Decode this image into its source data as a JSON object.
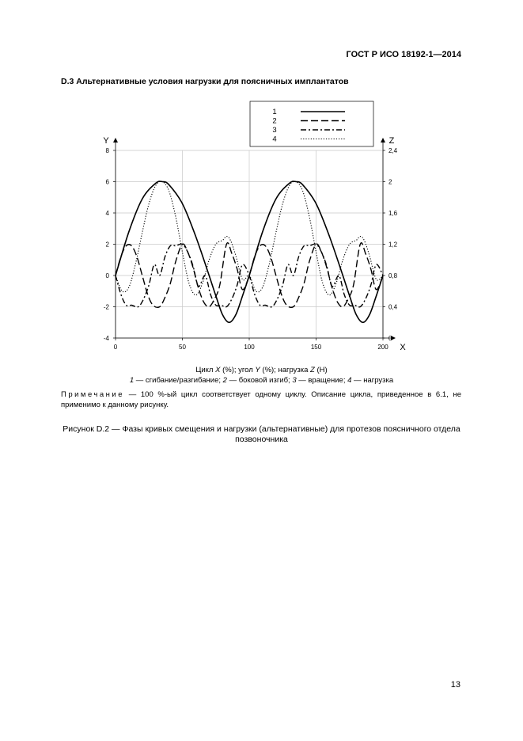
{
  "header": {
    "standard_id": "ГОСТ Р ИСО 18192-1—2014"
  },
  "section": {
    "title": "D.3 Альтернативные условия нагрузки для поясничных имплантатов"
  },
  "figure": {
    "axis_caption_parts": [
      "Цикл ",
      "X",
      " (%); угол ",
      "Y",
      " (%); нагрузка ",
      "Z",
      " (Н)"
    ],
    "legend_caption_parts": [
      "1",
      " — сгибание/разгибание; ",
      "2",
      " — боковой изгиб; ",
      "3",
      " — вращение; ",
      "4",
      " — нагрузка"
    ],
    "note_head": "Примечание",
    "note_text": " — 100 %-ый цикл соответствует одному циклу. Описание цикла, приведенное в 6.1, не применимо к данному рисунку.",
    "caption": "Рисунок D.2 — Фазы кривых смещения и нагрузки (альтернативные) для протезов поясничного отдела позвоночника"
  },
  "page": {
    "number": "13"
  },
  "chart_data": {
    "type": "line",
    "xlabel": "X",
    "ylabel": "Y",
    "y2label": "Z",
    "xlim": [
      0,
      200
    ],
    "ylim": [
      -4,
      8
    ],
    "y2lim": [
      0,
      2.4
    ],
    "x_ticks": [
      "0",
      "50",
      "100",
      "150",
      "200"
    ],
    "y_ticks": [
      "-4",
      "-2",
      "0",
      "2",
      "4",
      "6",
      "8"
    ],
    "y2_ticks": [
      "0",
      "0,4",
      "0,8",
      "1,2",
      "1,6",
      "2",
      "2,4"
    ],
    "grid": true,
    "legend_position": "top-right, above plot",
    "series": [
      {
        "name": "1",
        "axis": "left",
        "style": "solid",
        "x": [
          0,
          10,
          20,
          30,
          35,
          40,
          50,
          60,
          70,
          75,
          80,
          85,
          90,
          95,
          100,
          110,
          120,
          130,
          135,
          140,
          150,
          160,
          170,
          175,
          180,
          185,
          190,
          195,
          200
        ],
        "y": [
          0,
          2.8,
          4.9,
          5.9,
          6.0,
          5.8,
          4.6,
          2.5,
          0.0,
          -1.3,
          -2.5,
          -3.0,
          -2.5,
          -1.3,
          0,
          2.8,
          4.9,
          5.9,
          6.0,
          5.8,
          4.6,
          2.5,
          0.0,
          -1.3,
          -2.5,
          -3.0,
          -2.5,
          -1.3,
          0
        ]
      },
      {
        "name": "2",
        "axis": "left",
        "style": "dashed",
        "x": [
          0,
          4,
          8,
          12,
          16,
          20,
          24,
          28,
          33,
          37,
          41,
          45,
          50,
          54,
          58,
          62,
          66,
          70,
          74,
          78,
          83,
          87,
          91,
          95,
          100,
          104,
          108,
          112,
          116,
          120,
          124,
          128,
          133,
          137,
          141,
          145,
          150,
          154,
          158,
          162,
          166,
          170,
          174,
          178,
          183,
          187,
          191,
          195,
          200
        ],
        "y": [
          0,
          1.2,
          1.9,
          1.9,
          1.2,
          0,
          -1.2,
          -1.9,
          -2.0,
          -1.4,
          -0.5,
          0.9,
          2.0,
          1.5,
          0.5,
          -0.8,
          -1.7,
          -2.0,
          -1.5,
          -0.6,
          2.0,
          1.4,
          0.4,
          -0.9,
          0,
          1.2,
          1.9,
          1.9,
          1.2,
          0,
          -1.2,
          -1.9,
          -2.0,
          -1.4,
          -0.5,
          0.9,
          2.0,
          1.5,
          0.5,
          -0.8,
          -1.7,
          -2.0,
          -1.5,
          -0.6,
          2.0,
          1.4,
          0.4,
          -0.9,
          0
        ]
      },
      {
        "name": "3",
        "axis": "left",
        "style": "dash-dot",
        "x": [
          0,
          4,
          8,
          12,
          17,
          21,
          25,
          29,
          33,
          37,
          41,
          45,
          50,
          54,
          58,
          62,
          67,
          71,
          75,
          79,
          83,
          87,
          91,
          95,
          100,
          104,
          108,
          112,
          117,
          121,
          125,
          129,
          133,
          137,
          141,
          145,
          150,
          154,
          158,
          162,
          167,
          171,
          175,
          179,
          183,
          187,
          191,
          195,
          200
        ],
        "y": [
          0,
          -1.2,
          -1.9,
          -1.9,
          -2.0,
          -1.5,
          -0.6,
          0.7,
          0.0,
          1.2,
          1.9,
          1.9,
          2.0,
          1.5,
          0.6,
          -0.7,
          0.0,
          -1.2,
          -1.9,
          -1.9,
          -2.0,
          -1.5,
          -0.6,
          0.7,
          0,
          -1.2,
          -1.9,
          -1.9,
          -2.0,
          -1.5,
          -0.6,
          0.7,
          0.0,
          1.2,
          1.9,
          1.9,
          2.0,
          1.5,
          0.6,
          -0.7,
          0.0,
          -1.2,
          -1.9,
          -1.9,
          -2.0,
          -1.5,
          -0.6,
          0.7,
          0
        ]
      },
      {
        "name": "4",
        "axis": "right",
        "style": "dotted",
        "x": [
          0,
          5,
          10,
          15,
          20,
          25,
          30,
          35,
          40,
          45,
          50,
          55,
          60,
          65,
          70,
          75,
          80,
          83,
          86,
          90,
          95,
          100,
          105,
          110,
          115,
          120,
          125,
          130,
          135,
          140,
          145,
          150,
          155,
          160,
          165,
          170,
          175,
          180,
          183,
          186,
          190,
          195,
          200
        ],
        "y": [
          0.8,
          0.6,
          0.65,
          0.95,
          1.35,
          1.72,
          1.95,
          2.0,
          1.88,
          1.55,
          1.1,
          0.7,
          0.55,
          0.7,
          1.0,
          1.2,
          1.25,
          1.3,
          1.25,
          1.05,
          0.75,
          0.8,
          0.6,
          0.65,
          0.95,
          1.35,
          1.72,
          1.95,
          2.0,
          1.88,
          1.55,
          1.1,
          0.7,
          0.55,
          0.7,
          1.0,
          1.2,
          1.25,
          1.3,
          1.25,
          1.05,
          0.75,
          0.8
        ]
      }
    ]
  }
}
